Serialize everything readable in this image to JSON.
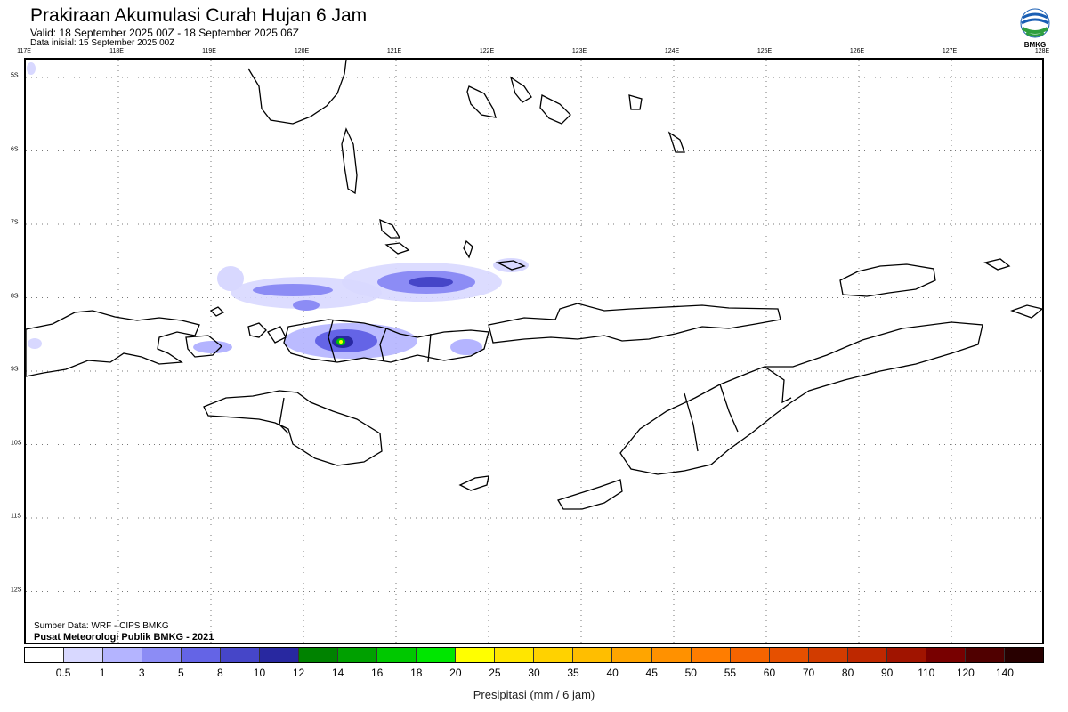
{
  "header": {
    "title": "Prakiraan Akumulasi Curah Hujan 6 Jam",
    "valid": "Valid: 18 September 2025 00Z - 18 September 2025 06Z",
    "initial": "Data inisial: 15 September 2025 00Z"
  },
  "logo": {
    "text": "BMKG",
    "icon": "bmkg-logo-icon"
  },
  "map": {
    "lon_ticks": [
      "117E",
      "118E",
      "119E",
      "120E",
      "121E",
      "122E",
      "123E",
      "124E",
      "125E",
      "126E",
      "127E",
      "128E"
    ],
    "lat_ticks": [
      "5S",
      "6S",
      "7S",
      "8S",
      "9S",
      "10S",
      "11S",
      "12S"
    ],
    "lon_range": [
      117,
      128
    ],
    "lat_range": [
      -4.8,
      -12.8
    ],
    "grid": true
  },
  "footer": {
    "source": "Sumber Data: WRF - CIPS BMKG",
    "center": "Pusat Meteorologi Publik BMKG - 2021"
  },
  "colorbar": {
    "unit_label": "Presipitasi (mm / 6 jam)",
    "labels": [
      "0.5",
      "1",
      "3",
      "5",
      "8",
      "10",
      "12",
      "14",
      "16",
      "18",
      "20",
      "25",
      "30",
      "35",
      "40",
      "45",
      "50",
      "55",
      "60",
      "70",
      "80",
      "90",
      "110",
      "120",
      "140"
    ],
    "colors": [
      "#ffffff",
      "#d8d8ff",
      "#b4b4ff",
      "#8c8cf5",
      "#6464e6",
      "#4646c8",
      "#2828a0",
      "#008200",
      "#00a000",
      "#00c800",
      "#00e600",
      "#ffff00",
      "#ffe600",
      "#ffd200",
      "#ffbe00",
      "#ffa500",
      "#ff9100",
      "#ff7d00",
      "#f56400",
      "#e65000",
      "#d23c00",
      "#be2800",
      "#a01400",
      "#780000",
      "#500000",
      "#280000"
    ]
  }
}
